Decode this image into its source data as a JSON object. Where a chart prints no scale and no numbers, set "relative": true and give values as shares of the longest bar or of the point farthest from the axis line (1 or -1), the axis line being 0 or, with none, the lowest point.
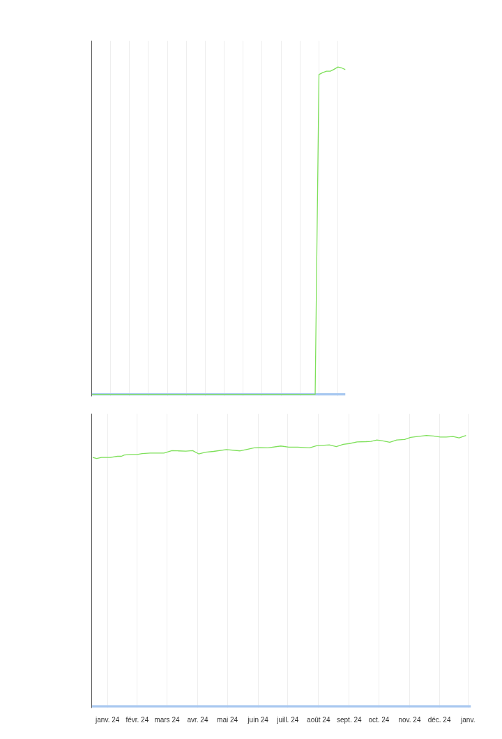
{
  "chart_data": [
    {
      "type": "line",
      "relative": true,
      "grid": true,
      "categories": [
        null,
        null,
        null,
        null,
        null,
        null,
        null,
        null,
        null,
        null,
        null,
        null,
        null,
        null,
        null,
        null,
        null,
        null,
        null,
        null,
        null,
        null,
        null,
        null,
        null,
        null,
        null,
        null,
        null,
        null,
        null,
        null,
        null,
        null,
        null,
        null,
        null,
        null,
        null,
        null,
        null,
        null,
        null,
        null,
        null,
        null,
        null,
        null,
        null,
        null,
        null,
        null,
        null,
        null,
        null,
        null,
        null,
        null,
        null,
        null,
        null,
        null,
        null,
        null,
        null,
        null,
        null,
        null
      ],
      "series": [
        {
          "color": "#a8c8f0",
          "values": [
            0,
            0,
            0,
            0,
            0,
            0,
            0,
            0,
            0,
            0,
            0,
            0,
            0,
            0,
            0,
            0,
            0,
            0,
            0,
            0,
            0,
            0,
            0,
            0,
            0,
            0,
            0,
            0,
            0,
            0,
            0,
            0,
            0,
            0,
            0,
            0,
            0,
            0,
            0,
            0,
            0,
            0,
            0,
            0,
            0,
            0,
            0,
            0,
            0,
            0,
            0,
            0,
            0,
            0,
            0,
            0,
            0,
            0,
            0,
            0,
            0,
            0,
            0,
            0,
            0,
            0,
            0,
            0
          ]
        },
        {
          "color": "#7ee05a",
          "values": [
            0,
            0,
            0,
            0,
            0,
            0,
            0,
            0,
            0,
            0,
            0,
            0,
            0,
            0,
            0,
            0,
            0,
            0,
            0,
            0,
            0,
            0,
            0,
            0,
            0,
            0,
            0,
            0,
            0,
            0,
            0,
            0,
            0,
            0,
            0,
            0,
            0,
            0,
            0,
            0,
            0,
            0,
            0,
            0,
            0,
            0,
            0,
            0,
            0,
            0,
            0,
            0,
            0,
            0,
            0,
            0,
            0,
            0,
            0,
            0,
            0.977,
            0.983,
            0.987,
            0.987,
            0.993,
            1,
            0.997,
            0.992
          ]
        }
      ]
    },
    {
      "type": "line",
      "relative": true,
      "grid": true,
      "xlim": [
        "2023-12-31",
        "2025-01-17"
      ],
      "xticks": [
        {
          "value": "2024-01-16",
          "label": "janv. 24"
        },
        {
          "value": "2024-02-15",
          "label": "févr. 24"
        },
        {
          "value": "2024-03-16",
          "label": "mars 24"
        },
        {
          "value": "2024-04-16",
          "label": "avr. 24"
        },
        {
          "value": "2024-05-16",
          "label": "mai 24"
        },
        {
          "value": "2024-06-16",
          "label": "juin 24"
        },
        {
          "value": "2024-07-16",
          "label": "juill. 24"
        },
        {
          "value": "2024-08-16",
          "label": "août 24"
        },
        {
          "value": "2024-09-16",
          "label": "sept. 24"
        },
        {
          "value": "2024-10-16",
          "label": "oct. 24"
        },
        {
          "value": "2024-11-16",
          "label": "nov. 24"
        },
        {
          "value": "2024-12-16",
          "label": "déc. 24"
        },
        {
          "value": "2025-01-14",
          "label": "janv."
        }
      ],
      "series": [
        {
          "color": "#a8c8f0",
          "x": [
            "2023-12-31",
            "2025-01-17"
          ],
          "values": [
            0,
            0
          ]
        },
        {
          "color": "#7ee05a",
          "x": [
            "2024-01-01",
            "2024-01-05",
            "2024-01-10",
            "2024-01-19",
            "2024-01-26",
            "2024-01-30",
            "2024-02-02",
            "2024-02-09",
            "2024-02-15",
            "2024-02-20",
            "2024-02-28",
            "2024-03-13",
            "2024-03-21",
            "2024-03-28",
            "2024-04-04",
            "2024-04-11",
            "2024-04-17",
            "2024-04-24",
            "2024-05-02",
            "2024-05-15",
            "2024-05-29",
            "2024-06-04",
            "2024-06-12",
            "2024-06-18",
            "2024-06-26",
            "2024-07-09",
            "2024-07-17",
            "2024-07-26",
            "2024-08-07",
            "2024-08-14",
            "2024-08-27",
            "2024-09-03",
            "2024-09-10",
            "2024-09-16",
            "2024-09-24",
            "2024-10-03",
            "2024-10-08",
            "2024-10-14",
            "2024-10-20",
            "2024-10-27",
            "2024-11-03",
            "2024-11-11",
            "2024-11-17",
            "2024-11-24",
            "2024-12-03",
            "2024-12-10",
            "2024-12-17",
            "2024-12-23",
            "2024-12-30",
            "2025-01-05",
            "2025-01-12"
          ],
          "values": [
            0.919,
            0.915,
            0.919,
            0.919,
            0.923,
            0.923,
            0.928,
            0.93,
            0.93,
            0.933,
            0.935,
            0.935,
            0.944,
            0.943,
            0.942,
            0.944,
            0.932,
            0.938,
            0.941,
            0.948,
            0.943,
            0.948,
            0.954,
            0.955,
            0.954,
            0.961,
            0.957,
            0.957,
            0.954,
            0.962,
            0.965,
            0.959,
            0.967,
            0.97,
            0.976,
            0.977,
            0.978,
            0.983,
            0.98,
            0.975,
            0.983,
            0.985,
            0.993,
            0.996,
            1,
            0.998,
            0.994,
            0.994,
            0.996,
            0.991,
            1
          ]
        }
      ]
    }
  ]
}
